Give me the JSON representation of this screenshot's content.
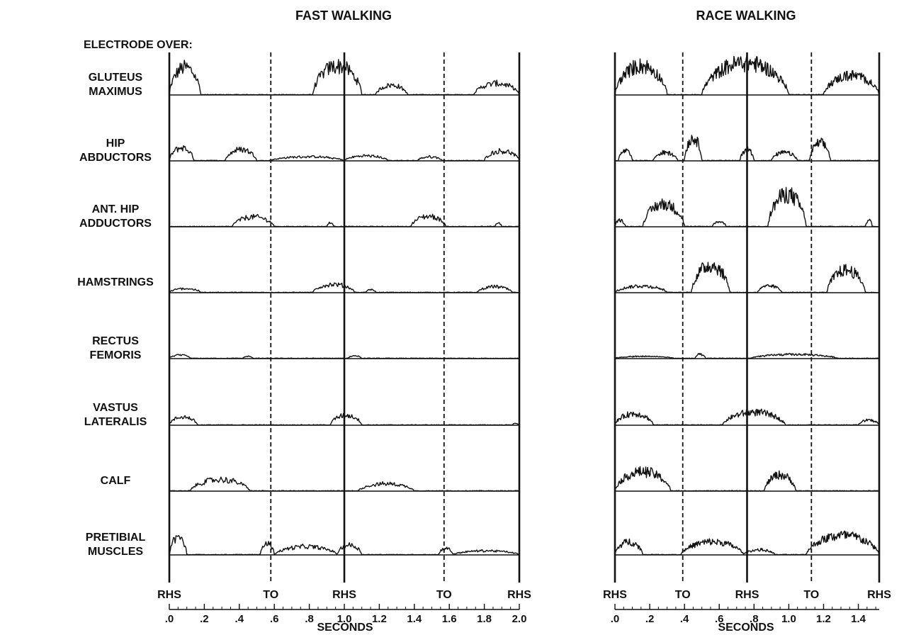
{
  "figure": {
    "electrode_label": "ELECTRODE OVER:",
    "muscles": [
      [
        "GLUTEUS",
        "MAXIMUS"
      ],
      [
        "HIP",
        "ABDUCTORS"
      ],
      [
        "ANT. HIP",
        "ADDUCTORS"
      ],
      [
        "HAMSTRINGS"
      ],
      [
        "RECTUS",
        "FEMORIS"
      ],
      [
        "VASTUS",
        "LATERALIS"
      ],
      [
        "CALF"
      ],
      [
        "PRETIBIAL",
        "MUSCLES"
      ]
    ]
  },
  "chart_data": [
    {
      "type": "line",
      "title": "FAST WALKING",
      "xlabel": "SECONDS",
      "xlim": [
        0,
        2.0
      ],
      "xticks": [
        0,
        0.2,
        0.4,
        0.6,
        0.8,
        1.0,
        1.2,
        1.4,
        1.6,
        1.8,
        2.0
      ],
      "xtick_labels": [
        ".0",
        ".2",
        ".4",
        ".6",
        ".8",
        "1.0",
        "1.2",
        "1.4",
        "1.6",
        "1.8",
        "2.0"
      ],
      "events": [
        {
          "label": "RHS",
          "t": 0.0,
          "style": "solid"
        },
        {
          "label": "TO",
          "t": 0.58,
          "style": "dashed"
        },
        {
          "label": "RHS",
          "t": 1.0,
          "style": "solid"
        },
        {
          "label": "TO",
          "t": 1.57,
          "style": "dashed"
        },
        {
          "label": "RHS",
          "t": 2.0,
          "style": "solid"
        }
      ],
      "series": [
        {
          "muscle_index": 0,
          "bursts": [
            [
              0.0,
              0.18,
              0.85
            ],
            [
              0.82,
              1.1,
              0.9
            ],
            [
              1.18,
              1.36,
              0.3
            ],
            [
              1.74,
              2.0,
              0.35
            ]
          ]
        },
        {
          "muscle_index": 1,
          "bursts": [
            [
              0.0,
              0.14,
              0.4
            ],
            [
              0.32,
              0.5,
              0.35
            ],
            [
              0.58,
              1.0,
              0.12
            ],
            [
              1.0,
              1.25,
              0.15
            ],
            [
              1.42,
              1.56,
              0.12
            ],
            [
              1.8,
              2.0,
              0.3
            ]
          ]
        },
        {
          "muscle_index": 2,
          "bursts": [
            [
              0.36,
              0.6,
              0.3
            ],
            [
              0.9,
              0.94,
              0.12
            ],
            [
              1.38,
              1.58,
              0.32
            ],
            [
              1.86,
              1.9,
              0.1
            ]
          ]
        },
        {
          "muscle_index": 3,
          "bursts": [
            [
              0.0,
              0.18,
              0.12
            ],
            [
              0.82,
              1.06,
              0.25
            ],
            [
              1.12,
              1.18,
              0.08
            ],
            [
              1.76,
              1.96,
              0.18
            ]
          ]
        },
        {
          "muscle_index": 4,
          "bursts": [
            [
              0.0,
              0.12,
              0.1
            ],
            [
              0.42,
              0.48,
              0.06
            ],
            [
              1.02,
              1.1,
              0.08
            ]
          ]
        },
        {
          "muscle_index": 5,
          "bursts": [
            [
              0.0,
              0.16,
              0.25
            ],
            [
              0.92,
              1.1,
              0.3
            ],
            [
              1.96,
              2.0,
              0.05
            ]
          ]
        },
        {
          "muscle_index": 6,
          "bursts": [
            [
              0.12,
              0.46,
              0.35
            ],
            [
              1.08,
              1.4,
              0.22
            ]
          ]
        },
        {
          "muscle_index": 7,
          "bursts": [
            [
              0.0,
              0.1,
              0.55
            ],
            [
              0.52,
              0.6,
              0.35
            ],
            [
              0.6,
              0.96,
              0.25
            ],
            [
              0.96,
              1.1,
              0.3
            ],
            [
              1.54,
              1.62,
              0.2
            ],
            [
              1.62,
              2.0,
              0.12
            ]
          ]
        }
      ]
    },
    {
      "type": "line",
      "title": "RACE WALKING",
      "xlabel": "SECONDS",
      "xlim": [
        0,
        1.52
      ],
      "xticks": [
        0,
        0.2,
        0.4,
        0.6,
        0.8,
        1.0,
        1.2,
        1.4
      ],
      "xtick_labels": [
        ".0",
        ".2",
        ".4",
        ".6",
        ".8",
        "1.0",
        "1.2",
        "1.4"
      ],
      "events": [
        {
          "label": "RHS",
          "t": 0.0,
          "style": "solid"
        },
        {
          "label": "TO",
          "t": 0.39,
          "style": "dashed"
        },
        {
          "label": "RHS",
          "t": 0.76,
          "style": "solid"
        },
        {
          "label": "TO",
          "t": 1.13,
          "style": "dashed"
        },
        {
          "label": "RHS",
          "t": 1.52,
          "style": "solid"
        }
      ],
      "series": [
        {
          "muscle_index": 0,
          "bursts": [
            [
              0.0,
              0.3,
              0.9
            ],
            [
              0.5,
              1.0,
              1.0
            ],
            [
              1.2,
              1.52,
              0.6
            ]
          ]
        },
        {
          "muscle_index": 1,
          "bursts": [
            [
              0.02,
              0.1,
              0.3
            ],
            [
              0.22,
              0.36,
              0.25
            ],
            [
              0.4,
              0.5,
              0.7
            ],
            [
              0.72,
              0.8,
              0.35
            ],
            [
              0.9,
              1.05,
              0.25
            ],
            [
              1.12,
              1.24,
              0.55
            ]
          ]
        },
        {
          "muscle_index": 2,
          "bursts": [
            [
              0.0,
              0.06,
              0.2
            ],
            [
              0.16,
              0.4,
              0.7
            ],
            [
              0.56,
              0.64,
              0.15
            ],
            [
              0.88,
              1.1,
              1.0
            ],
            [
              1.44,
              1.48,
              0.2
            ]
          ]
        },
        {
          "muscle_index": 3,
          "bursts": [
            [
              0.0,
              0.3,
              0.2
            ],
            [
              0.44,
              0.66,
              0.85
            ],
            [
              0.82,
              0.96,
              0.2
            ],
            [
              1.22,
              1.44,
              0.7
            ]
          ]
        },
        {
          "muscle_index": 4,
          "bursts": [
            [
              0.0,
              0.34,
              0.06
            ],
            [
              0.46,
              0.52,
              0.12
            ],
            [
              0.78,
              1.28,
              0.12
            ]
          ]
        },
        {
          "muscle_index": 5,
          "bursts": [
            [
              0.0,
              0.22,
              0.35
            ],
            [
              0.62,
              0.98,
              0.4
            ],
            [
              1.4,
              1.52,
              0.15
            ]
          ]
        },
        {
          "muscle_index": 6,
          "bursts": [
            [
              0.0,
              0.32,
              0.6
            ],
            [
              0.86,
              1.04,
              0.5
            ]
          ]
        },
        {
          "muscle_index": 7,
          "bursts": [
            [
              0.0,
              0.16,
              0.4
            ],
            [
              0.38,
              0.74,
              0.4
            ],
            [
              0.74,
              0.92,
              0.15
            ],
            [
              1.1,
              1.52,
              0.6
            ]
          ]
        }
      ]
    }
  ]
}
